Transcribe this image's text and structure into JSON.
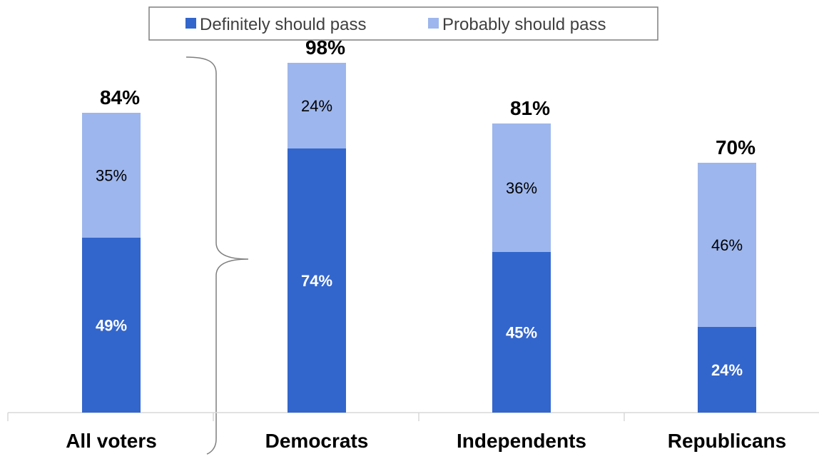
{
  "colors": {
    "definitely": "#3366CC",
    "probably": "#9DB6ED",
    "axis": "#D9D9D9",
    "brace": "#7F7F7F"
  },
  "legend": {
    "placement": "top-center",
    "items": [
      {
        "label": "Definitely should pass",
        "color": "#3366CC"
      },
      {
        "label": "Probably should pass",
        "color": "#9DB6ED"
      }
    ]
  },
  "chart_data": {
    "type": "bar",
    "stacked": true,
    "title": "",
    "xlabel": "",
    "ylabel": "",
    "ylim": [
      0,
      100
    ],
    "grid": false,
    "categories": [
      "All voters",
      "Democrats",
      "Independents",
      "Republicans"
    ],
    "series": [
      {
        "name": "Definitely should pass",
        "values": [
          49,
          74,
          45,
          24
        ],
        "labels": [
          "49%",
          "74%",
          "45%",
          "24%"
        ]
      },
      {
        "name": "Probably should pass",
        "values": [
          35,
          24,
          36,
          46
        ],
        "labels": [
          "35%",
          "24%",
          "36%",
          "46%"
        ]
      }
    ],
    "totals": [
      84,
      98,
      81,
      70
    ],
    "total_labels": [
      "84%",
      "98%",
      "81%",
      "70%"
    ]
  }
}
